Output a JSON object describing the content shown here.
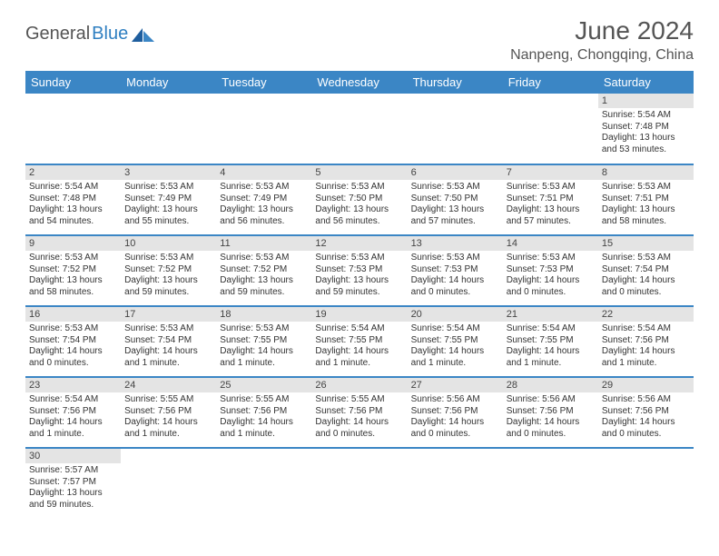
{
  "brand": {
    "part1": "General",
    "part2": "Blue"
  },
  "title": "June 2024",
  "location": "Nanpeng, Chongqing, China",
  "colors": {
    "header_bg": "#3b86c5",
    "header_text": "#ffffff",
    "daynum_bg": "#e4e4e4",
    "rule": "#3b86c5",
    "text": "#333333",
    "title_text": "#555555",
    "logo_blue": "#2f7fc1"
  },
  "weekdays": [
    "Sunday",
    "Monday",
    "Tuesday",
    "Wednesday",
    "Thursday",
    "Friday",
    "Saturday"
  ],
  "weeks": [
    [
      null,
      null,
      null,
      null,
      null,
      null,
      {
        "n": "1",
        "sr": "Sunrise: 5:54 AM",
        "ss": "Sunset: 7:48 PM",
        "dl": "Daylight: 13 hours and 53 minutes."
      }
    ],
    [
      {
        "n": "2",
        "sr": "Sunrise: 5:54 AM",
        "ss": "Sunset: 7:48 PM",
        "dl": "Daylight: 13 hours and 54 minutes."
      },
      {
        "n": "3",
        "sr": "Sunrise: 5:53 AM",
        "ss": "Sunset: 7:49 PM",
        "dl": "Daylight: 13 hours and 55 minutes."
      },
      {
        "n": "4",
        "sr": "Sunrise: 5:53 AM",
        "ss": "Sunset: 7:49 PM",
        "dl": "Daylight: 13 hours and 56 minutes."
      },
      {
        "n": "5",
        "sr": "Sunrise: 5:53 AM",
        "ss": "Sunset: 7:50 PM",
        "dl": "Daylight: 13 hours and 56 minutes."
      },
      {
        "n": "6",
        "sr": "Sunrise: 5:53 AM",
        "ss": "Sunset: 7:50 PM",
        "dl": "Daylight: 13 hours and 57 minutes."
      },
      {
        "n": "7",
        "sr": "Sunrise: 5:53 AM",
        "ss": "Sunset: 7:51 PM",
        "dl": "Daylight: 13 hours and 57 minutes."
      },
      {
        "n": "8",
        "sr": "Sunrise: 5:53 AM",
        "ss": "Sunset: 7:51 PM",
        "dl": "Daylight: 13 hours and 58 minutes."
      }
    ],
    [
      {
        "n": "9",
        "sr": "Sunrise: 5:53 AM",
        "ss": "Sunset: 7:52 PM",
        "dl": "Daylight: 13 hours and 58 minutes."
      },
      {
        "n": "10",
        "sr": "Sunrise: 5:53 AM",
        "ss": "Sunset: 7:52 PM",
        "dl": "Daylight: 13 hours and 59 minutes."
      },
      {
        "n": "11",
        "sr": "Sunrise: 5:53 AM",
        "ss": "Sunset: 7:52 PM",
        "dl": "Daylight: 13 hours and 59 minutes."
      },
      {
        "n": "12",
        "sr": "Sunrise: 5:53 AM",
        "ss": "Sunset: 7:53 PM",
        "dl": "Daylight: 13 hours and 59 minutes."
      },
      {
        "n": "13",
        "sr": "Sunrise: 5:53 AM",
        "ss": "Sunset: 7:53 PM",
        "dl": "Daylight: 14 hours and 0 minutes."
      },
      {
        "n": "14",
        "sr": "Sunrise: 5:53 AM",
        "ss": "Sunset: 7:53 PM",
        "dl": "Daylight: 14 hours and 0 minutes."
      },
      {
        "n": "15",
        "sr": "Sunrise: 5:53 AM",
        "ss": "Sunset: 7:54 PM",
        "dl": "Daylight: 14 hours and 0 minutes."
      }
    ],
    [
      {
        "n": "16",
        "sr": "Sunrise: 5:53 AM",
        "ss": "Sunset: 7:54 PM",
        "dl": "Daylight: 14 hours and 0 minutes."
      },
      {
        "n": "17",
        "sr": "Sunrise: 5:53 AM",
        "ss": "Sunset: 7:54 PM",
        "dl": "Daylight: 14 hours and 1 minute."
      },
      {
        "n": "18",
        "sr": "Sunrise: 5:53 AM",
        "ss": "Sunset: 7:55 PM",
        "dl": "Daylight: 14 hours and 1 minute."
      },
      {
        "n": "19",
        "sr": "Sunrise: 5:54 AM",
        "ss": "Sunset: 7:55 PM",
        "dl": "Daylight: 14 hours and 1 minute."
      },
      {
        "n": "20",
        "sr": "Sunrise: 5:54 AM",
        "ss": "Sunset: 7:55 PM",
        "dl": "Daylight: 14 hours and 1 minute."
      },
      {
        "n": "21",
        "sr": "Sunrise: 5:54 AM",
        "ss": "Sunset: 7:55 PM",
        "dl": "Daylight: 14 hours and 1 minute."
      },
      {
        "n": "22",
        "sr": "Sunrise: 5:54 AM",
        "ss": "Sunset: 7:56 PM",
        "dl": "Daylight: 14 hours and 1 minute."
      }
    ],
    [
      {
        "n": "23",
        "sr": "Sunrise: 5:54 AM",
        "ss": "Sunset: 7:56 PM",
        "dl": "Daylight: 14 hours and 1 minute."
      },
      {
        "n": "24",
        "sr": "Sunrise: 5:55 AM",
        "ss": "Sunset: 7:56 PM",
        "dl": "Daylight: 14 hours and 1 minute."
      },
      {
        "n": "25",
        "sr": "Sunrise: 5:55 AM",
        "ss": "Sunset: 7:56 PM",
        "dl": "Daylight: 14 hours and 1 minute."
      },
      {
        "n": "26",
        "sr": "Sunrise: 5:55 AM",
        "ss": "Sunset: 7:56 PM",
        "dl": "Daylight: 14 hours and 0 minutes."
      },
      {
        "n": "27",
        "sr": "Sunrise: 5:56 AM",
        "ss": "Sunset: 7:56 PM",
        "dl": "Daylight: 14 hours and 0 minutes."
      },
      {
        "n": "28",
        "sr": "Sunrise: 5:56 AM",
        "ss": "Sunset: 7:56 PM",
        "dl": "Daylight: 14 hours and 0 minutes."
      },
      {
        "n": "29",
        "sr": "Sunrise: 5:56 AM",
        "ss": "Sunset: 7:56 PM",
        "dl": "Daylight: 14 hours and 0 minutes."
      }
    ],
    [
      {
        "n": "30",
        "sr": "Sunrise: 5:57 AM",
        "ss": "Sunset: 7:57 PM",
        "dl": "Daylight: 13 hours and 59 minutes."
      },
      null,
      null,
      null,
      null,
      null,
      null
    ]
  ]
}
